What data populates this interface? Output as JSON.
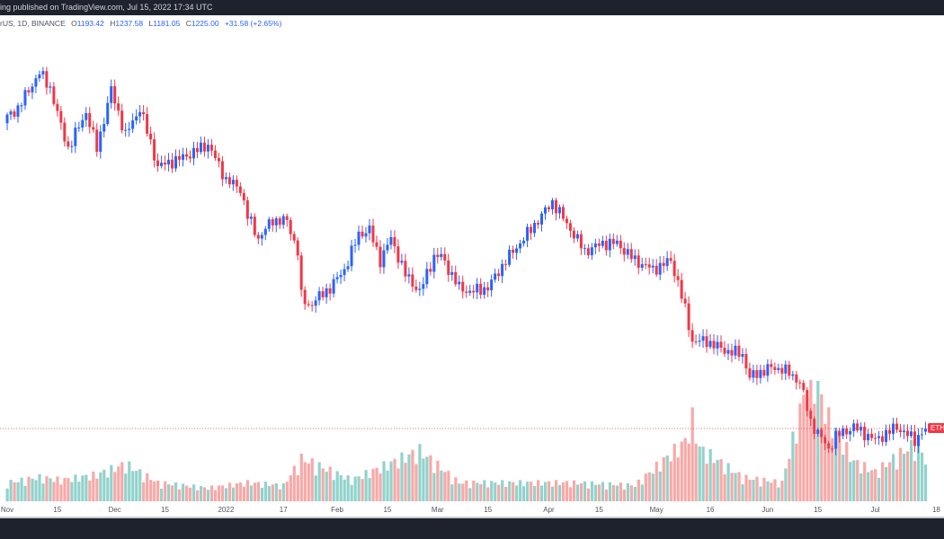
{
  "topbar": {
    "text": "ing published on TradingView.com, Jul 15, 2022 17:34 UTC"
  },
  "legend": {
    "symbol": "rUS, 1D, BINANCE",
    "open_label": "O",
    "open": "1193.42",
    "high_label": "H",
    "high": "1237.58",
    "low_label": "L",
    "low": "1181.05",
    "close_label": "C",
    "close": "1225.00",
    "change": "+31.58 (+2.65%)"
  },
  "price_label": "ETH",
  "colors": {
    "up": "#2962ff",
    "down": "#f23645",
    "vol_up": "#26a69a",
    "vol_down": "#ef5350",
    "background": "#ffffff",
    "frame": "#1e222d"
  },
  "chart_data": {
    "type": "candlestick",
    "interval": "1D",
    "title": "",
    "last_price": 1225.0,
    "last_price_line": "dotted",
    "grid": false,
    "x_ticks": [
      {
        "label": "Nov",
        "date": "2021-11-01"
      },
      {
        "label": "15",
        "date": "2021-11-15"
      },
      {
        "label": "Dec",
        "date": "2021-12-01"
      },
      {
        "label": "15",
        "date": "2021-12-15"
      },
      {
        "label": "2022",
        "date": "2022-01-01"
      },
      {
        "label": "17",
        "date": "2022-01-17"
      },
      {
        "label": "Feb",
        "date": "2022-02-01"
      },
      {
        "label": "15",
        "date": "2022-02-15"
      },
      {
        "label": "Mar",
        "date": "2022-03-01"
      },
      {
        "label": "15",
        "date": "2022-03-15"
      },
      {
        "label": "Apr",
        "date": "2022-04-01"
      },
      {
        "label": "15",
        "date": "2022-04-15"
      },
      {
        "label": "May",
        "date": "2022-05-01"
      },
      {
        "label": "16",
        "date": "2022-05-16"
      },
      {
        "label": "Jun",
        "date": "2022-06-01"
      },
      {
        "label": "15",
        "date": "2022-06-15"
      },
      {
        "label": "Jul",
        "date": "2022-07-01"
      },
      {
        "label": "18",
        "date": "2022-07-18"
      }
    ],
    "close_points": [
      [
        "2021-11-01",
        4310
      ],
      [
        "2021-11-04",
        4400
      ],
      [
        "2021-11-10",
        4750
      ],
      [
        "2021-11-13",
        4600
      ],
      [
        "2021-11-16",
        4220
      ],
      [
        "2021-11-18",
        4000
      ],
      [
        "2021-11-23",
        4360
      ],
      [
        "2021-11-26",
        4000
      ],
      [
        "2021-11-30",
        4580
      ],
      [
        "2021-12-04",
        4130
      ],
      [
        "2021-12-08",
        4400
      ],
      [
        "2021-12-13",
        3820
      ],
      [
        "2021-12-20",
        3910
      ],
      [
        "2021-12-27",
        4040
      ],
      [
        "2022-01-01",
        3690
      ],
      [
        "2022-01-05",
        3600
      ],
      [
        "2022-01-07",
        3330
      ],
      [
        "2022-01-10",
        3110
      ],
      [
        "2022-01-14",
        3290
      ],
      [
        "2022-01-18",
        3280
      ],
      [
        "2022-01-21",
        2980
      ],
      [
        "2022-01-22",
        2530
      ],
      [
        "2022-01-24",
        2440
      ],
      [
        "2022-01-30",
        2620
      ],
      [
        "2022-02-03",
        2800
      ],
      [
        "2022-02-07",
        3150
      ],
      [
        "2022-02-10",
        3190
      ],
      [
        "2022-02-13",
        2890
      ],
      [
        "2022-02-16",
        3110
      ],
      [
        "2022-02-20",
        2750
      ],
      [
        "2022-02-24",
        2580
      ],
      [
        "2022-02-28",
        2930
      ],
      [
        "2022-03-02",
        2930
      ],
      [
        "2022-03-07",
        2620
      ],
      [
        "2022-03-10",
        2580
      ],
      [
        "2022-03-15",
        2620
      ],
      [
        "2022-03-20",
        2890
      ],
      [
        "2022-03-25",
        3110
      ],
      [
        "2022-04-02",
        3470
      ],
      [
        "2022-04-07",
        3200
      ],
      [
        "2022-04-11",
        2980
      ],
      [
        "2022-04-16",
        3060
      ],
      [
        "2022-04-20",
        3060
      ],
      [
        "2022-04-25",
        2890
      ],
      [
        "2022-04-30",
        2800
      ],
      [
        "2022-05-05",
        2890
      ],
      [
        "2022-05-07",
        2670
      ],
      [
        "2022-05-09",
        2400
      ],
      [
        "2022-05-11",
        2090
      ],
      [
        "2022-05-15",
        2090
      ],
      [
        "2022-05-20",
        2000
      ],
      [
        "2022-05-25",
        1960
      ],
      [
        "2022-05-27",
        1730
      ],
      [
        "2022-06-01",
        1820
      ],
      [
        "2022-06-05",
        1820
      ],
      [
        "2022-06-10",
        1690
      ],
      [
        "2022-06-13",
        1290
      ],
      [
        "2022-06-18",
        1020
      ],
      [
        "2022-06-20",
        1150
      ],
      [
        "2022-06-25",
        1240
      ],
      [
        "2022-07-01",
        1110
      ],
      [
        "2022-07-07",
        1240
      ],
      [
        "2022-07-12",
        1110
      ],
      [
        "2022-07-15",
        1225
      ]
    ],
    "volume_points_relative": [
      [
        "2021-11-01",
        14
      ],
      [
        "2021-11-10",
        18
      ],
      [
        "2021-11-16",
        16
      ],
      [
        "2021-11-26",
        20
      ],
      [
        "2021-12-04",
        28
      ],
      [
        "2021-12-13",
        14
      ],
      [
        "2021-12-27",
        10
      ],
      [
        "2022-01-07",
        14
      ],
      [
        "2022-01-17",
        12
      ],
      [
        "2022-01-22",
        32
      ],
      [
        "2022-01-24",
        30
      ],
      [
        "2022-02-05",
        16
      ],
      [
        "2022-02-24",
        38
      ],
      [
        "2022-03-07",
        14
      ],
      [
        "2022-03-25",
        14
      ],
      [
        "2022-04-07",
        14
      ],
      [
        "2022-04-25",
        12
      ],
      [
        "2022-05-09",
        45
      ],
      [
        "2022-05-11",
        62
      ],
      [
        "2022-05-13",
        40
      ],
      [
        "2022-05-25",
        18
      ],
      [
        "2022-06-05",
        14
      ],
      [
        "2022-06-13",
        100
      ],
      [
        "2022-06-18",
        62
      ],
      [
        "2022-06-25",
        30
      ],
      [
        "2022-07-01",
        22
      ],
      [
        "2022-07-07",
        34
      ],
      [
        "2022-07-13",
        45
      ],
      [
        "2022-07-15",
        30
      ]
    ]
  }
}
